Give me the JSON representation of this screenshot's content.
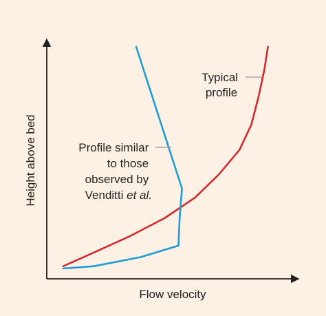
{
  "chart_data": {
    "type": "line",
    "title": "",
    "xlabel": "Flow velocity",
    "ylabel": "Height above bed",
    "grid": false,
    "legend": "none",
    "xlim": [
      0,
      100
    ],
    "ylim": [
      0,
      100
    ],
    "series": [
      {
        "name": "Typical profile",
        "color": "#d42a2a",
        "x": [
          7,
          20,
          35,
          50,
          63,
          73,
          82,
          87,
          90,
          92.5,
          94
        ],
        "y": [
          4,
          10,
          17,
          25,
          34,
          44,
          55,
          66,
          78,
          90,
          100
        ]
      },
      {
        "name": "Profile similar to those observed by Venditti et al.",
        "color": "#1f9bd6",
        "x": [
          7,
          20,
          40,
          56,
          56.5,
          57.5,
          38
        ],
        "y": [
          3,
          4,
          8,
          13,
          25,
          38,
          100
        ]
      }
    ],
    "annotations": [
      {
        "lines": [
          "Typical",
          "profile"
        ],
        "series": 0
      },
      {
        "lines": [
          "Profile similar",
          "to those",
          "observed by"
        ],
        "last_line": "Venditti",
        "last_line_italic": "et al.",
        "series": 1
      }
    ]
  }
}
